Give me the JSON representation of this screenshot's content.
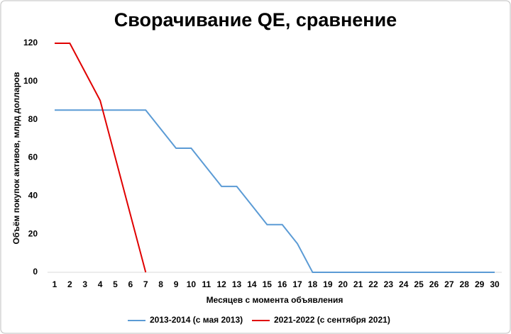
{
  "chart_data": {
    "type": "line",
    "title": "Сворачивание QE, сравнение",
    "x_label": "Месяцев с момента объявления",
    "y_label": "Объём покупок активов, млрд долларов",
    "x": [
      1,
      2,
      3,
      4,
      5,
      6,
      7,
      8,
      9,
      10,
      11,
      12,
      13,
      14,
      15,
      16,
      17,
      18,
      19,
      20,
      21,
      22,
      23,
      24,
      25,
      26,
      27,
      28,
      29,
      30
    ],
    "xlim": [
      1,
      30
    ],
    "xticks": [
      1,
      2,
      3,
      4,
      5,
      6,
      7,
      8,
      9,
      10,
      11,
      12,
      13,
      14,
      15,
      16,
      17,
      18,
      19,
      20,
      21,
      22,
      23,
      24,
      25,
      26,
      27,
      28,
      29,
      30
    ],
    "ylim": [
      0,
      120
    ],
    "yticks": [
      0,
      20,
      40,
      60,
      80,
      100,
      120
    ],
    "grid": false,
    "legend": "bottom",
    "series": [
      {
        "name": "2013-2014 (с мая 2013)",
        "color": "#5b9bd5",
        "values": [
          85,
          85,
          85,
          85,
          85,
          85,
          85,
          75,
          65,
          65,
          55,
          45,
          45,
          35,
          25,
          25,
          15,
          0,
          0,
          0,
          0,
          0,
          0,
          0,
          0,
          0,
          0,
          0,
          0,
          0
        ]
      },
      {
        "name": "2021-2022 (с сентября 2021)",
        "color": "#e00000",
        "values": [
          120,
          120,
          105,
          90,
          60,
          30,
          0,
          null,
          null,
          null,
          null,
          null,
          null,
          null,
          null,
          null,
          null,
          null,
          null,
          null,
          null,
          null,
          null,
          null,
          null,
          null,
          null,
          null,
          null,
          null
        ]
      }
    ]
  }
}
